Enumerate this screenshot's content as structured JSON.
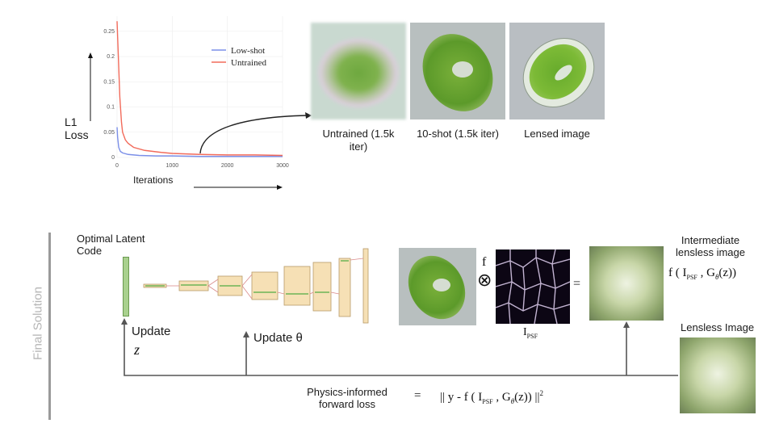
{
  "chart_data": {
    "type": "line",
    "xlabel": "Iterations",
    "ylabel": "L1 Loss",
    "xlim": [
      0,
      3000
    ],
    "ylim": [
      0,
      0.28
    ],
    "x_ticks": [
      "0",
      "1000",
      "2000",
      "3000"
    ],
    "y_ticks": [
      "0",
      "0.05",
      "0.1",
      "0.15",
      "0.2",
      "0.25"
    ],
    "legend_position": "top-right",
    "series": [
      {
        "name": "Low-shot",
        "color": "#7b8fe8",
        "x": [
          0,
          10,
          30,
          60,
          100,
          200,
          400,
          700,
          1000,
          1500,
          2000,
          2500,
          3000
        ],
        "y": [
          0.06,
          0.04,
          0.02,
          0.012,
          0.009,
          0.006,
          0.004,
          0.003,
          0.003,
          0.002,
          0.002,
          0.002,
          0.002
        ]
      },
      {
        "name": "Untrained",
        "color": "#f26b5b",
        "x": [
          0,
          20,
          50,
          80,
          100,
          150,
          200,
          300,
          500,
          800,
          1000,
          1500,
          2000,
          2500,
          3000
        ],
        "y": [
          0.27,
          0.21,
          0.12,
          0.07,
          0.05,
          0.035,
          0.028,
          0.02,
          0.014,
          0.01,
          0.008,
          0.006,
          0.005,
          0.005,
          0.004
        ]
      }
    ]
  },
  "top": {
    "captions": [
      "Untrained (1.5k iter)",
      "10-shot (1.5k iter)",
      "Lensed image"
    ]
  },
  "bottom": {
    "side_label": "Final Solution",
    "latent_label": "Optimal Latent Code",
    "update_z": "Update",
    "z_symbol": "z",
    "update_theta": "Update θ",
    "f_symbol": "f",
    "conv_symbol": "⊗",
    "eq_symbol": "=",
    "psf_label": "I",
    "psf_sub": "PSF",
    "intermediate_label": "Intermediate lensless image",
    "intermediate_formula": "f ( I",
    "intermediate_formula_rest": " , G",
    "intermediate_formula_end": "(z))",
    "lensless_label": "Lensless Image",
    "loss_label": "Physics-informed forward loss",
    "loss_eq": "=",
    "loss_formula_a": "|| y - f ( I",
    "loss_formula_b": " , G",
    "loss_formula_c": "(z)) ||",
    "loss_sup": "2",
    "theta_sub": "θ"
  }
}
